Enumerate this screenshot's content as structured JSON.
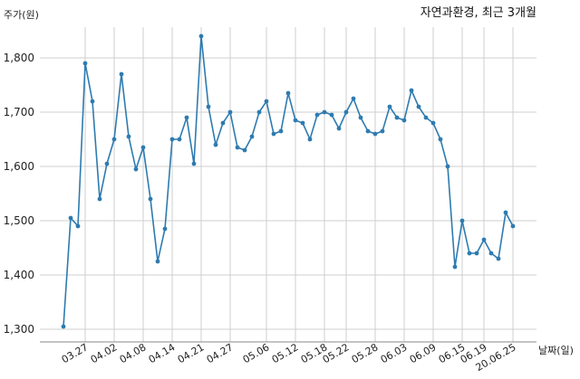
{
  "chart_data": {
    "type": "line",
    "title": "자연과환경, 최근 3개월",
    "ylabel": "주가(원)",
    "xlabel": "날짜(일)",
    "ylim": [
      1300,
      1850
    ],
    "yticks": [
      "1,300",
      "1,400",
      "1,500",
      "1,600",
      "1,700",
      "1,800"
    ],
    "ytick_values": [
      1300,
      1400,
      1500,
      1600,
      1700,
      1800
    ],
    "xticks": [
      "03.27",
      "04.02",
      "04.08",
      "04.14",
      "04.21",
      "04.27",
      "05.06",
      "05.12",
      "05.18",
      "05.22",
      "05.28",
      "06.03",
      "06.09",
      "06.15",
      "06.19",
      "20.06.25"
    ],
    "xtick_indices": [
      3,
      7,
      11,
      15,
      19,
      23,
      28,
      32,
      36,
      39,
      43,
      47,
      51,
      55,
      58,
      62
    ],
    "grid": true,
    "color": "#2e7bb0",
    "series": [
      {
        "values": [
          1305,
          1505,
          1490,
          1790,
          1720,
          1540,
          1605,
          1650,
          1770,
          1655,
          1595,
          1635,
          1540,
          1425,
          1485,
          1650,
          1650,
          1690,
          1605,
          1840,
          1710,
          1640,
          1680,
          1700,
          1635,
          1630,
          1655,
          1700,
          1720,
          1660,
          1665,
          1735,
          1685,
          1680,
          1650,
          1695,
          1700,
          1695,
          1670,
          1700,
          1725,
          1690,
          1665,
          1660,
          1665,
          1710,
          1690,
          1685,
          1740,
          1710,
          1690,
          1680,
          1650,
          1600,
          1415,
          1500,
          1440,
          1440,
          1465,
          1440,
          1430,
          1515,
          1490
        ]
      }
    ]
  }
}
